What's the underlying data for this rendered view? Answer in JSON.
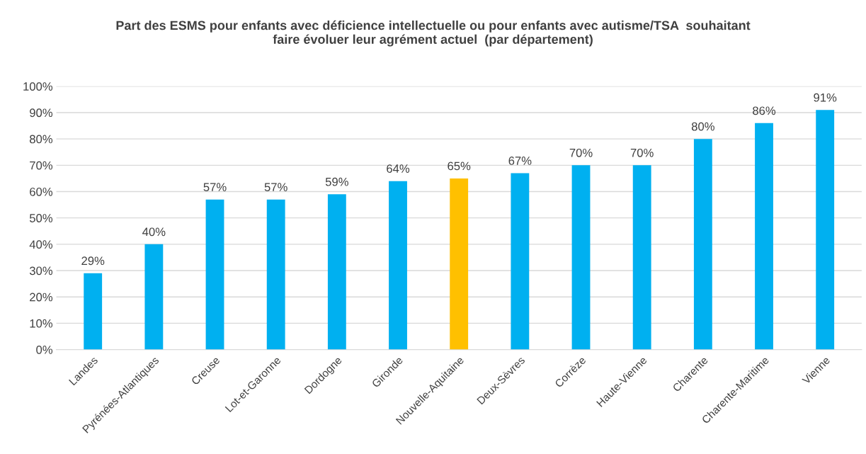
{
  "chart_data": {
    "type": "bar",
    "title": "Part des ESMS pour enfants avec déficience intellectuelle ou pour enfants avec autisme/TSA  souhaitant\nfaire évoluer leur agrément actuel  (par département)",
    "categories": [
      "Landes",
      "Pyrénées-Atlantiques",
      "Creuse",
      "Lot-et-Garonne",
      "Dordogne",
      "Gironde",
      "Nouvelle-Aquitaine",
      "Deux-Sèvres",
      "Corrèze",
      "Haute-Vienne",
      "Charente",
      "Charente-Maritime",
      "Vienne"
    ],
    "values": [
      29,
      40,
      57,
      57,
      59,
      64,
      65,
      67,
      70,
      70,
      80,
      86,
      91
    ],
    "value_labels": [
      "29%",
      "40%",
      "57%",
      "57%",
      "59%",
      "64%",
      "65%",
      "67%",
      "70%",
      "70%",
      "80%",
      "86%",
      "91%"
    ],
    "colors": [
      "#00b0f0",
      "#00b0f0",
      "#00b0f0",
      "#00b0f0",
      "#00b0f0",
      "#00b0f0",
      "#ffc000",
      "#00b0f0",
      "#00b0f0",
      "#00b0f0",
      "#00b0f0",
      "#00b0f0",
      "#00b0f0"
    ],
    "ylim": [
      0,
      100
    ],
    "yticks": [
      {
        "value": 0,
        "label": "0%"
      },
      {
        "value": 10,
        "label": "10%"
      },
      {
        "value": 20,
        "label": "20%"
      },
      {
        "value": 30,
        "label": "30%"
      },
      {
        "value": 40,
        "label": "40%"
      },
      {
        "value": 50,
        "label": "50%"
      },
      {
        "value": 60,
        "label": "60%"
      },
      {
        "value": 70,
        "label": "70%"
      },
      {
        "value": 80,
        "label": "80%"
      },
      {
        "value": 90,
        "label": "90%"
      },
      {
        "value": 100,
        "label": "100%"
      }
    ],
    "grid": "y"
  }
}
